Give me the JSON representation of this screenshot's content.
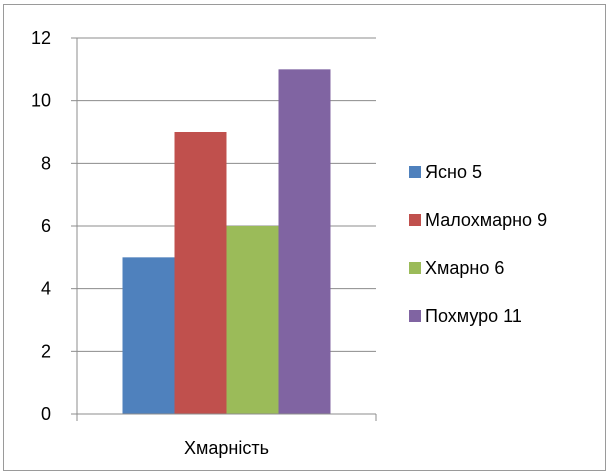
{
  "chart_data": {
    "type": "bar",
    "categories": [
      "Хмарність"
    ],
    "series": [
      {
        "name": "Ясно 5",
        "values": [
          5
        ],
        "color": "#4F81BD"
      },
      {
        "name": "Малохмарно 9",
        "values": [
          9
        ],
        "color": "#C0504D"
      },
      {
        "name": "Хмарно 6",
        "values": [
          6
        ],
        "color": "#9BBB59"
      },
      {
        "name": "Похмуро 11",
        "values": [
          11
        ],
        "color": "#8064A2"
      }
    ],
    "ylim": [
      0,
      12
    ],
    "yticks": [
      "0",
      "2",
      "4",
      "6",
      "8",
      "10",
      "12"
    ],
    "grid": true,
    "legend_position": "right",
    "title": "",
    "xlabel": "",
    "ylabel": ""
  }
}
